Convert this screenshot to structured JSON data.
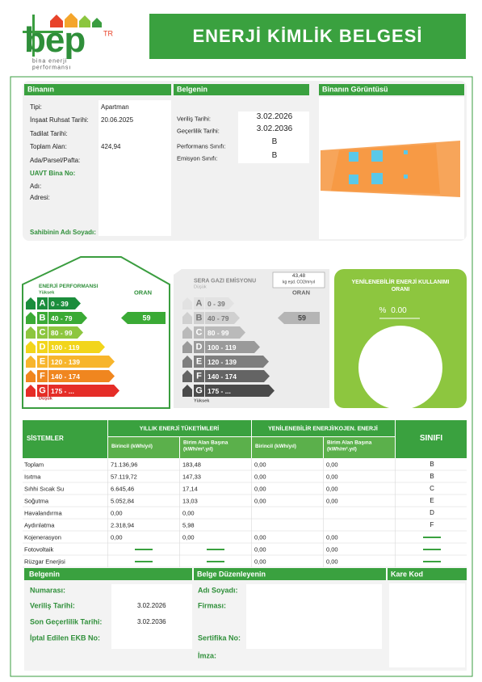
{
  "header": {
    "logo": "bep",
    "logo_sup": "TR",
    "logo_sub": [
      "bina enerji",
      "performansı"
    ],
    "title": "ENERJİ KİMLİK BELGESİ"
  },
  "building": {
    "heading": "Binanın",
    "fields": [
      {
        "label": "Tipi:",
        "value": "Apartman"
      },
      {
        "label": "İnşaat Ruhsat Tarihi:",
        "value": "20.06.2025"
      },
      {
        "label": "Tadilat Tarihi:"
      },
      {
        "label": "Toplam Alan:",
        "value": "424,94"
      },
      {
        "label": "Ada/Parsel/Pafta:"
      },
      {
        "label": "UAVT Bina No:"
      },
      {
        "label": "Adı:"
      },
      {
        "label": "Adresi:"
      },
      {
        "label": "Sahibinin Adı Soyadı:"
      }
    ]
  },
  "certificate": {
    "heading": "Belgenin",
    "fields": [
      {
        "label": "Veriliş Tarihi:",
        "value": "3.02.2026"
      },
      {
        "label": "Geçerlilik Tarihi:",
        "value": "3.02.2036"
      },
      {
        "label": "Performans Sınıfı:",
        "value": "B"
      },
      {
        "label": "Emisyon Sınıfı:",
        "value": "B"
      }
    ]
  },
  "building_image": {
    "heading": "Binanın Görüntüsü"
  },
  "energy_performance": {
    "title": "ENERJİ PERFORMANSI",
    "top": "Yüksek",
    "bottom": "Düşük",
    "rate_label": "ORAN",
    "rate": 59,
    "classes": [
      {
        "letter": "A",
        "range": "0 - 39"
      },
      {
        "letter": "B",
        "range": "40 - 79"
      },
      {
        "letter": "C",
        "range": "80 - 99"
      },
      {
        "letter": "D",
        "range": "100 - 119"
      },
      {
        "letter": "E",
        "range": "120 - 139"
      },
      {
        "letter": "F",
        "range": "140 - 174"
      },
      {
        "letter": "G",
        "range": "175 - ..."
      }
    ]
  },
  "ghg_emission": {
    "title": "SERA GAZI EMİSYONU",
    "top": "Düşük",
    "bottom": "Yüksek",
    "rate_label": "ORAN",
    "rate": 59,
    "amount": "43,48",
    "unit": "kg eşd. CO2/m²yıl",
    "classes": [
      {
        "letter": "A",
        "range": "0 - 39"
      },
      {
        "letter": "B",
        "range": "40 - 79"
      },
      {
        "letter": "C",
        "range": "80 - 99"
      },
      {
        "letter": "D",
        "range": "100 - 119"
      },
      {
        "letter": "E",
        "range": "120 - 139"
      },
      {
        "letter": "F",
        "range": "140 - 174"
      },
      {
        "letter": "G",
        "range": "175 - ..."
      }
    ]
  },
  "renewable": {
    "title": "YENİLENEBİLİR ENERJİ KULLANIMI ORANI",
    "percent_sign": "%",
    "value": "0.00"
  },
  "systems": {
    "headers": {
      "systems": "SİSTEMLER",
      "consumption": "YILLIK ENERJİ TÜKETİMLERİ",
      "renewable": "YENİLENEBİLİR ENERJİ/KOJEN. ENERJİ",
      "class": "SINIFI"
    },
    "subheaders": [
      "Birincil (kWh/yıl)",
      "Birim Alan Başına (kWh/m².yıl)",
      "Birincil (kWh/yıl)",
      "Birim Alan Başına (kWh/m².yıl)"
    ],
    "rows": [
      {
        "name": "Toplam",
        "values": [
          "71.136,96",
          "183,48",
          "0,00",
          "0,00"
        ],
        "class": "B"
      },
      {
        "name": "Isıtma",
        "values": [
          "57.119,72",
          "147,33",
          "0,00",
          "0,00"
        ],
        "class": "B"
      },
      {
        "name": "Sıhhi Sıcak Su",
        "values": [
          "6.645,46",
          "17,14",
          "0,00",
          "0,00"
        ],
        "class": "C"
      },
      {
        "name": "Soğutma",
        "values": [
          "5.052,84",
          "13,03",
          "0,00",
          "0,00"
        ],
        "class": "E"
      },
      {
        "name": "Havalandırma",
        "values": [
          "0,00",
          "0,00",
          null,
          null
        ],
        "class": "D"
      },
      {
        "name": "Aydınlatma",
        "values": [
          "2.318,94",
          "5,98",
          null,
          null
        ],
        "class": "F"
      },
      {
        "name": "Kojenerasyon",
        "values": [
          "0,00",
          "0,00",
          "0,00",
          "0,00"
        ],
        "class": null
      },
      {
        "name": "Fotovoltaik",
        "values": [
          null,
          null,
          "0,00",
          "0,00"
        ],
        "class": null
      },
      {
        "name": "Rüzgar Enerjisi",
        "values": [
          null,
          null,
          "0,00",
          "0,00"
        ],
        "class": null
      }
    ]
  },
  "issue": {
    "heading": "Belgenin",
    "fields": [
      {
        "label": "Numarası:"
      },
      {
        "label": "Veriliş Tarihi:",
        "value": "3.02.2026"
      },
      {
        "label": "Son Geçerlilik Tarihi:",
        "value": "3.02.2036"
      },
      {
        "label": "İptal Edilen EKB No:"
      }
    ]
  },
  "issuer": {
    "heading": "Belge Düzenleyenin",
    "fields": [
      {
        "label": "Adı Soyadı:"
      },
      {
        "label": "Firması:"
      },
      {
        "label": "Sertifika No:"
      },
      {
        "label": "İmza:"
      }
    ]
  },
  "qr": {
    "heading": "Kare Kod"
  }
}
